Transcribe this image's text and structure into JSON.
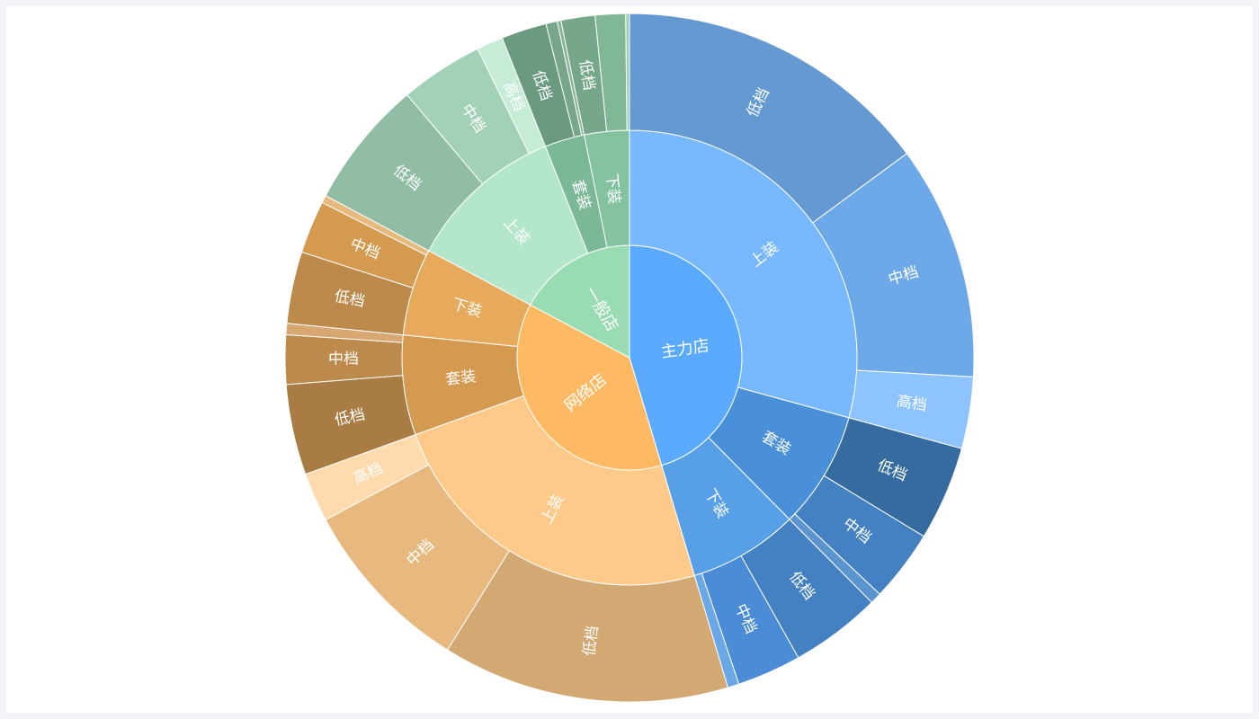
{
  "chart_data": {
    "type": "sunburst",
    "title": "",
    "children": [
      {
        "name": "主力店",
        "color": "#5aabff",
        "children": [
          {
            "name": "上装",
            "color": "#78b8ff",
            "children": [
              {
                "name": "低档",
                "value": 84,
                "color": "#6499d2"
              },
              {
                "name": "中档",
                "value": 62,
                "color": "#6da9e8"
              },
              {
                "name": "高档",
                "value": 19,
                "color": "#8dc4ff"
              }
            ]
          },
          {
            "name": "套装",
            "color": "#4a90d9",
            "children": [
              {
                "name": "低档",
                "value": 25,
                "color": "#356b9e"
              },
              {
                "name": "中档",
                "value": 19,
                "color": "#4381c3"
              },
              {
                "name": "",
                "value": 3,
                "color": "#5b94cf"
              }
            ]
          },
          {
            "name": "下装",
            "color": "#579fe6",
            "children": [
              {
                "name": "低档",
                "value": 24,
                "color": "#4381c3"
              },
              {
                "name": "中档",
                "value": 17,
                "color": "#4a8cd6"
              },
              {
                "name": "",
                "value": 3,
                "color": "#6aa7e6"
              }
            ]
          }
        ]
      },
      {
        "name": "网络店",
        "color": "#ffb963",
        "children": [
          {
            "name": "上装",
            "color": "#fdca8a",
            "children": [
              {
                "name": "低档",
                "value": 76,
                "color": "#d2a873"
              },
              {
                "name": "中档",
                "value": 47,
                "color": "#e8b97f"
              },
              {
                "name": "高档",
                "value": 13,
                "color": "#ffdaad"
              }
            ]
          },
          {
            "name": "套装",
            "color": "#d49a50",
            "children": [
              {
                "name": "低档",
                "value": 24,
                "color": "#a97c44"
              },
              {
                "name": "中档",
                "value": 13,
                "color": "#bc8a4b"
              },
              {
                "name": "",
                "value": 3,
                "color": "#d9a772"
              }
            ]
          },
          {
            "name": "下装",
            "color": "#e7aa5c",
            "children": [
              {
                "name": "低档",
                "value": 19,
                "color": "#bc8a4b"
              },
              {
                "name": "中档",
                "value": 14,
                "color": "#d49a50"
              },
              {
                "name": "",
                "value": 2,
                "color": "#e8b97f"
              }
            ]
          }
        ]
      },
      {
        "name": "一般店",
        "color": "#99dcb3",
        "children": [
          {
            "name": "上装",
            "color": "#b3e6cb",
            "children": [
              {
                "name": "低档",
                "value": 34,
                "color": "#90bda4"
              },
              {
                "name": "中档",
                "value": 22,
                "color": "#a1d1b6"
              },
              {
                "name": "高档",
                "value": 7,
                "color": "#c6ecd8"
              }
            ]
          },
          {
            "name": "套装",
            "color": "#7ab897",
            "children": [
              {
                "name": "低档",
                "value": 12,
                "color": "#6a9a80"
              },
              {
                "name": "",
                "value": 3,
                "color": "#78a68c"
              },
              {
                "name": "",
                "value": 1,
                "color": "#86b59b"
              }
            ]
          },
          {
            "name": "下装",
            "color": "#84c39f",
            "children": [
              {
                "name": "低档",
                "value": 9,
                "color": "#76a78b"
              },
              {
                "name": "",
                "value": 8,
                "color": "#80b895"
              },
              {
                "name": "",
                "value": 1,
                "color": "#9ecfb2"
              }
            ]
          }
        ]
      }
    ]
  }
}
